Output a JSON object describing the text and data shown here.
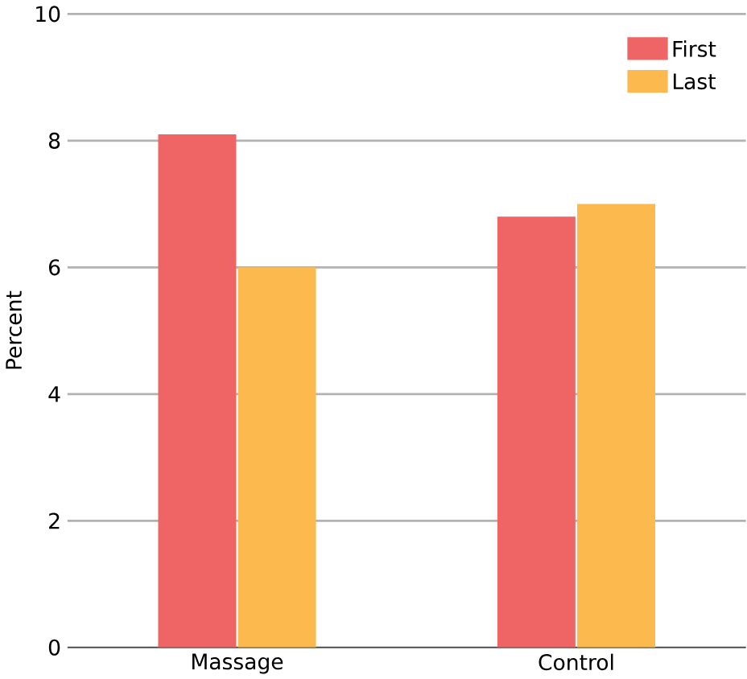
{
  "chart_data": {
    "type": "bar",
    "ylabel": "Percent",
    "categories": [
      "Massage",
      "Control"
    ],
    "series": [
      {
        "name": "First",
        "color": "#ef6464",
        "values": [
          8.1,
          6.8
        ]
      },
      {
        "name": "Last",
        "color": "#fcb94e",
        "values": [
          6.0,
          7.0
        ]
      }
    ],
    "ylim": [
      0,
      10
    ],
    "yticks": [
      0,
      2,
      4,
      6,
      8,
      10
    ],
    "grid": "y",
    "legend": "top right"
  }
}
